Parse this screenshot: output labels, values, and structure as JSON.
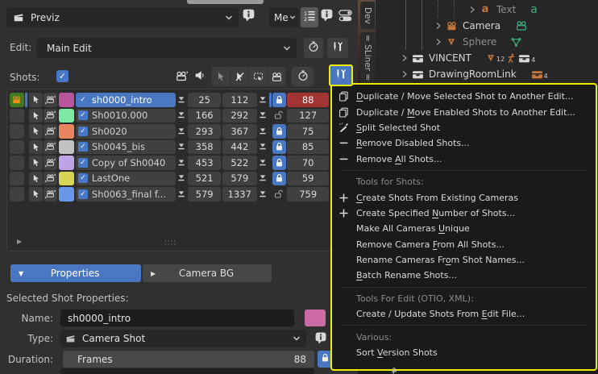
{
  "header": {
    "take_selector_value": "Previz",
    "me_selector_value": "Me",
    "edit_label": "Edit:",
    "edit_value": "Main Edit",
    "shots_label": "Shots:"
  },
  "colors": {
    "accent_blue": "#4a77c2",
    "highlight_yellow": "#eded00",
    "duration_warning_red": "#a43434",
    "current_shot_green": "#3d7a20"
  },
  "shot_list": {
    "rows": [
      {
        "name": "sh0000_intro",
        "start": "25",
        "end": "112",
        "duration": "88",
        "color": "#b8559d",
        "locked": true,
        "enabled": true,
        "selected": true,
        "current": true,
        "duration_warning": true
      },
      {
        "name": "Sh0010.000",
        "start": "166",
        "end": "292",
        "duration": "127",
        "color": "#7fe8a2",
        "locked": false,
        "enabled": true
      },
      {
        "name": "Sh0020",
        "start": "293",
        "end": "367",
        "duration": "75",
        "color": "#e8845e",
        "locked": true,
        "enabled": true
      },
      {
        "name": "Sh0045_bis",
        "start": "358",
        "end": "442",
        "duration": "85",
        "color": "#c2c2c2",
        "locked": true,
        "enabled": true
      },
      {
        "name": "Copy of Sh0040",
        "start": "453",
        "end": "522",
        "duration": "70",
        "color": "#bda4e6",
        "locked": true,
        "enabled": true
      },
      {
        "name": "LastOne",
        "start": "521",
        "end": "579",
        "duration": "59",
        "color": "#d6d655",
        "locked": true,
        "enabled": true
      },
      {
        "name": "Sh0063_final f...",
        "start": "579",
        "end": "1337",
        "duration": "759",
        "color": "#6a96ea",
        "locked": false,
        "enabled": true
      }
    ]
  },
  "footer_tabs": {
    "properties": "Properties",
    "camera_bg": "Camera BG"
  },
  "selected_shot": {
    "section_label": "Selected Shot Properties:",
    "name_label": "Name:",
    "name_value": "sh0000_intro",
    "type_label": "Type:",
    "type_value": "Camera Shot",
    "duration_label": "Duration:",
    "frames_label": "Frames",
    "frames_value": "88"
  },
  "tools_menu": {
    "entries": [
      {
        "type": "item",
        "icon": "copy",
        "label": "Duplicate / Move Selected Shot to Another Edit...",
        "underline": 0
      },
      {
        "type": "item",
        "icon": "copy",
        "label": "Duplicate / Move Enabled Shots to Another Edit...",
        "underline": 12
      },
      {
        "type": "item",
        "icon": "knife",
        "label": "Split Selected Shot",
        "underline": 0
      },
      {
        "type": "item",
        "icon": "minus",
        "label": "Remove Disabled Shots...",
        "underline": 0
      },
      {
        "type": "item",
        "icon": "minus",
        "label": "Remove All Shots...",
        "underline": 7
      },
      {
        "type": "separator"
      },
      {
        "type": "header",
        "label": "Tools for Shots:"
      },
      {
        "type": "item",
        "icon": "plus",
        "label": "Create Shots From Existing Cameras",
        "underline": 0
      },
      {
        "type": "item",
        "icon": "plus",
        "label": "Create Specified Number of Shots...",
        "underline": 17
      },
      {
        "type": "item",
        "icon": "",
        "label": "Make All Cameras Unique",
        "underline": 17
      },
      {
        "type": "item",
        "icon": "",
        "label": "Remove Camera From All Shots...",
        "underline": 14
      },
      {
        "type": "item",
        "icon": "",
        "label": "Rename Cameras From Shot Names...",
        "underline": 17
      },
      {
        "type": "item",
        "icon": "",
        "label": "Batch Rename Shots...",
        "underline": 0
      },
      {
        "type": "separator"
      },
      {
        "type": "header",
        "label": "Tools For Edit (OTIO, XML):"
      },
      {
        "type": "item",
        "icon": "",
        "label": "Create / Update Shots From Edit File...",
        "underline": 27
      },
      {
        "type": "separator"
      },
      {
        "type": "header",
        "label": "Various:"
      },
      {
        "type": "item",
        "icon": "",
        "label": "Sort Version Shots",
        "underline": 5
      }
    ]
  },
  "outliner": {
    "rows": [
      {
        "label": "Text",
        "icon": "a_orange",
        "dim": true,
        "indent": 4,
        "badges": [
          {
            "icon": "a_green"
          }
        ]
      },
      {
        "label": "Camera",
        "icon": "camera_orange",
        "dim": false,
        "indent": 2,
        "badges": [
          {
            "icon": "camera_green"
          }
        ]
      },
      {
        "label": "Sphere",
        "icon": "cone_orange",
        "dim": true,
        "indent": 2,
        "badges": [
          {
            "icon": "mesh_green"
          }
        ]
      },
      {
        "label": "VINCENT",
        "icon": "box_light",
        "dim": false,
        "indent": 0,
        "badges": [
          {
            "icon": "cone_orange",
            "count": "12"
          },
          {
            "icon": "person_orange"
          },
          {
            "icon": "box_light",
            "count": "4"
          }
        ]
      },
      {
        "label": "DrawingRoomLink",
        "icon": "box_light",
        "dim": false,
        "indent": 0,
        "badges": [
          {
            "icon": "box_orange",
            "count": "4"
          }
        ]
      }
    ]
  },
  "side_tabs": {
    "dev": "Dev",
    "sliner": "= SLiner ="
  }
}
